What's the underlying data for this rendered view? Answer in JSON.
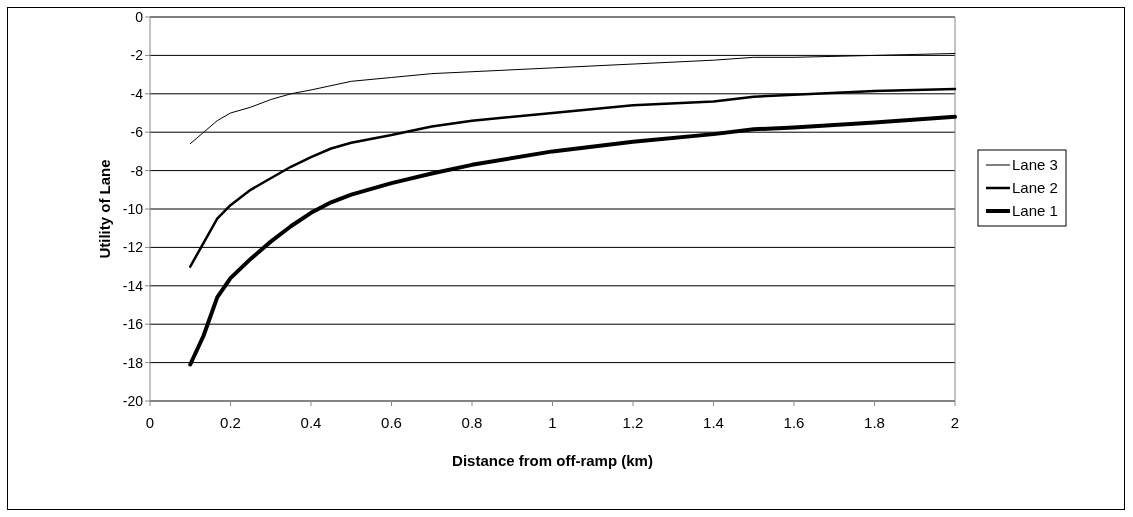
{
  "chart_data": {
    "type": "line",
    "xlabel": "Distance from off-ramp (km)",
    "ylabel": "Utility of Lane",
    "xlim": [
      0,
      2
    ],
    "xticks": [
      0,
      0.2,
      0.4,
      0.6,
      0.8,
      1,
      1.2,
      1.4,
      1.6,
      1.8,
      2
    ],
    "ylim": [
      -20,
      0
    ],
    "yticks": [
      -20,
      -18,
      -16,
      -14,
      -12,
      -10,
      -8,
      -6,
      -4,
      -2,
      0
    ],
    "grid": "y",
    "legend": "right",
    "marker": "none",
    "line_style": "solid",
    "series": [
      {
        "name": "Lane 3",
        "color": "#000000",
        "x": [
          0.1,
          0.167,
          0.2,
          0.25,
          0.3,
          0.35,
          0.4,
          0.5,
          0.6,
          0.7,
          0.8,
          1,
          1.2,
          1.4,
          1.5,
          1.6,
          1.8,
          2
        ],
        "values": [
          -6.6,
          -5.4,
          -5.0,
          -4.7,
          -4.3,
          -4.0,
          -3.8,
          -3.35,
          -3.15,
          -2.95,
          -2.85,
          -2.65,
          -2.45,
          -2.25,
          -2.1,
          -2.1,
          -2.0,
          -1.9
        ]
      },
      {
        "name": "Lane 2",
        "color": "#000000",
        "x": [
          0.1,
          0.167,
          0.2,
          0.25,
          0.3,
          0.35,
          0.4,
          0.45,
          0.5,
          0.6,
          0.7,
          0.8,
          1,
          1.2,
          1.4,
          1.5,
          1.6,
          1.8,
          2
        ],
        "values": [
          -13,
          -10.5,
          -9.8,
          -9.0,
          -8.4,
          -7.8,
          -7.3,
          -6.85,
          -6.55,
          -6.15,
          -5.7,
          -5.4,
          -5.0,
          -4.6,
          -4.4,
          -4.15,
          -4.05,
          -3.85,
          -3.75
        ]
      },
      {
        "name": "Lane 1",
        "color": "#000000",
        "x": [
          0.1,
          0.133,
          0.167,
          0.2,
          0.25,
          0.3,
          0.35,
          0.4,
          0.45,
          0.5,
          0.6,
          0.7,
          0.8,
          1,
          1.2,
          1.4,
          1.5,
          1.6,
          1.8,
          2
        ],
        "values": [
          -18.1,
          -16.6,
          -14.6,
          -13.6,
          -12.6,
          -11.7,
          -10.9,
          -10.2,
          -9.65,
          -9.25,
          -8.65,
          -8.15,
          -7.7,
          -7.0,
          -6.5,
          -6.1,
          -5.85,
          -5.75,
          -5.5,
          -5.2
        ]
      }
    ]
  }
}
